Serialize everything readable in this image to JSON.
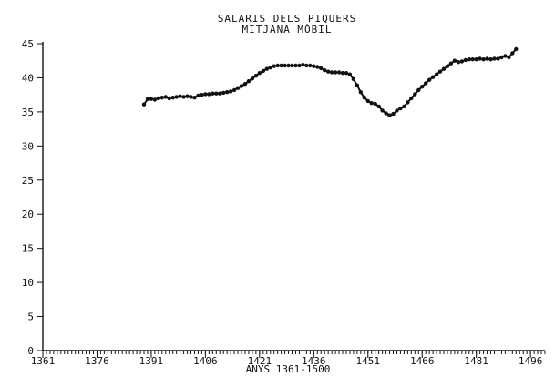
{
  "chart_data": {
    "type": "line",
    "title": "SALARIS DELS PIQUERS",
    "subtitle": "MITJANA MÒBIL",
    "xlabel": "ANYS 1361-1500",
    "ylabel": "",
    "xlim": [
      1361,
      1500
    ],
    "ylim": [
      0,
      45
    ],
    "x_ticks": [
      1361,
      1376,
      1391,
      1406,
      1421,
      1436,
      1451,
      1466,
      1481,
      1496
    ],
    "y_ticks": [
      0,
      5,
      10,
      15,
      20,
      25,
      30,
      35,
      40,
      45
    ],
    "grid": false,
    "legend": "none",
    "series": [
      {
        "x": [
          1389,
          1390,
          1391,
          1392,
          1393,
          1394,
          1395,
          1396,
          1397,
          1398,
          1399,
          1400,
          1401,
          1402,
          1403,
          1404,
          1405,
          1406,
          1407,
          1408,
          1409,
          1410,
          1411,
          1412,
          1413,
          1414,
          1415,
          1416,
          1417,
          1418,
          1419,
          1420,
          1421,
          1422,
          1423,
          1424,
          1425,
          1426,
          1427,
          1428,
          1429,
          1430,
          1431,
          1432,
          1433,
          1434,
          1435,
          1436,
          1437,
          1438,
          1439,
          1440,
          1441,
          1442,
          1443,
          1444,
          1445,
          1446,
          1447,
          1448,
          1449,
          1450,
          1451,
          1452,
          1453,
          1454,
          1455,
          1456,
          1457,
          1458,
          1459,
          1460,
          1461,
          1462,
          1463,
          1464,
          1465,
          1466,
          1467,
          1468,
          1469,
          1470,
          1471,
          1472,
          1473,
          1474,
          1475,
          1476,
          1477,
          1478,
          1479,
          1480,
          1481,
          1482,
          1483,
          1484,
          1485,
          1486,
          1487,
          1488,
          1489,
          1490,
          1491,
          1492
        ],
        "values": [
          36.1,
          36.9,
          36.9,
          36.8,
          37.0,
          37.1,
          37.2,
          37.0,
          37.1,
          37.2,
          37.3,
          37.2,
          37.3,
          37.2,
          37.1,
          37.4,
          37.5,
          37.6,
          37.6,
          37.7,
          37.7,
          37.7,
          37.8,
          37.9,
          38.0,
          38.2,
          38.5,
          38.8,
          39.1,
          39.5,
          39.9,
          40.3,
          40.7,
          41.0,
          41.3,
          41.5,
          41.7,
          41.8,
          41.8,
          41.8,
          41.8,
          41.8,
          41.8,
          41.8,
          41.9,
          41.8,
          41.8,
          41.7,
          41.6,
          41.4,
          41.1,
          40.9,
          40.8,
          40.8,
          40.8,
          40.7,
          40.7,
          40.5,
          39.8,
          38.9,
          37.9,
          37.1,
          36.6,
          36.3,
          36.2,
          35.8,
          35.2,
          34.8,
          34.5,
          34.7,
          35.2,
          35.5,
          35.8,
          36.4,
          37.0,
          37.6,
          38.2,
          38.7,
          39.2,
          39.7,
          40.1,
          40.5,
          40.9,
          41.3,
          41.7,
          42.1,
          42.5,
          42.3,
          42.4,
          42.6,
          42.7,
          42.7,
          42.7,
          42.8,
          42.7,
          42.8,
          42.7,
          42.8,
          42.8,
          43.0,
          43.2,
          43.0,
          43.6,
          44.2
        ]
      }
    ]
  }
}
